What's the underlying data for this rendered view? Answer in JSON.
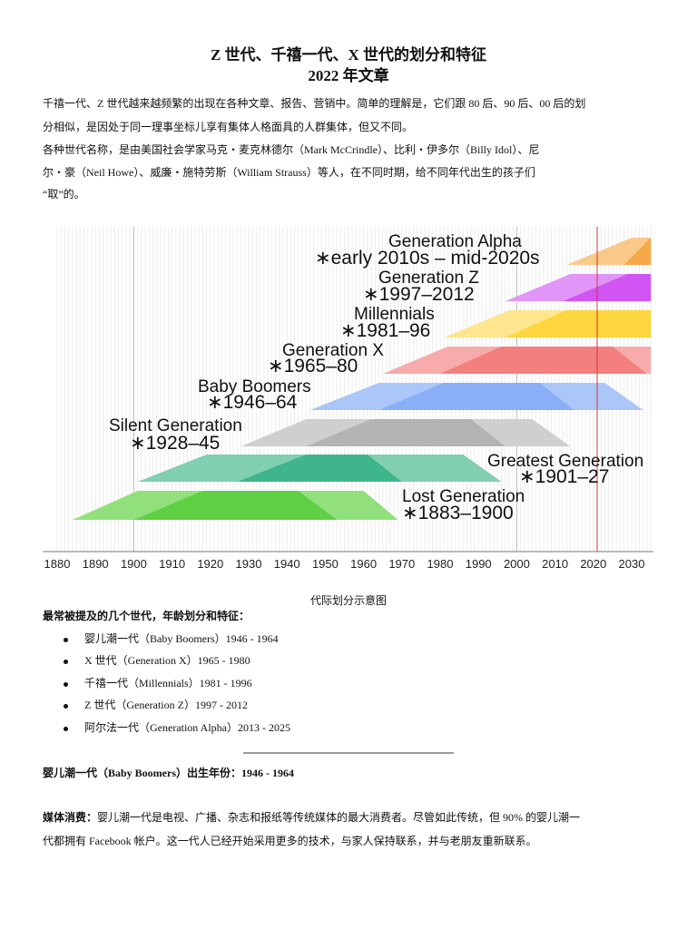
{
  "title": {
    "line1": "Z 世代、千禧一代、X 世代的划分和特征",
    "line2": "2022 年文章"
  },
  "intro": [
    "千禧一代、Z 世代越来越频繁的出现在各种文章、报告、营销中。简单的理解是，它们跟 80 后、90 后、00 后的划",
    "分相似，是因处于同一理事坐标儿享有集体人格面具的人群集体，但又不同。",
    "各种世代名称，是由美国社会学家马克・麦克林德尔（Mark McCrindle）、比利・伊多尔（Billy Idol）、尼",
    "尔・豪（Neil Howe）、威廉・施特劳斯（William Strauss）等人，在不同时期，给不同年代出生的孩子们",
    "“取”的。"
  ],
  "chart_data": {
    "type": "timeline",
    "xlim": [
      1880,
      2035
    ],
    "x_ticks": [
      "1880",
      "1890",
      "1900",
      "1910",
      "1920",
      "1930",
      "1940",
      "1950",
      "1960",
      "1970",
      "1980",
      "1990",
      "2000",
      "2010",
      "2020",
      "2030"
    ],
    "current_year_marker": 2021,
    "grid": true,
    "series": [
      {
        "name": "Generation Alpha",
        "label": "∗early 2010s – mid-2020s",
        "light": "#f9c98a",
        "dark": "#f7a94a",
        "light_shape": [
          2013,
          2030,
          2035,
          2035
        ],
        "dark_shape": [
          2028,
          2035,
          2035,
          2035
        ]
      },
      {
        "name": "Generation Z",
        "label": "∗1997–2012",
        "light": "#e195f6",
        "dark": "#d155f2",
        "light_shape": [
          1997,
          2014,
          2035,
          2035
        ],
        "dark_shape": [
          2012,
          2029,
          2035,
          2035
        ]
      },
      {
        "name": "Millennials",
        "label": "∗1981–96",
        "light": "#fde68e",
        "dark": "#fdd63e",
        "light_shape": [
          1981,
          1998,
          2035,
          2035
        ],
        "dark_shape": [
          1997,
          2013,
          2035,
          2035
        ]
      },
      {
        "name": "Generation X",
        "label": "∗1965–80",
        "light": "#f8abab",
        "dark": "#f47f7f",
        "light_shape": [
          1965,
          1982,
          2035,
          2035
        ],
        "dark_shape": [
          1980,
          1996,
          2025,
          2034
        ]
      },
      {
        "name": "Baby Boomers",
        "label": "∗1946–64",
        "light": "#abc6f9",
        "dark": "#8aaff6",
        "light_shape": [
          1946,
          1964,
          2023,
          2033
        ],
        "dark_shape": [
          1964,
          1981,
          2006,
          2015
        ]
      },
      {
        "name": "Silent Generation",
        "label": "∗1928–45",
        "light": "#cfcfcf",
        "dark": "#b3b3b3",
        "light_shape": [
          1928,
          1945,
          2004,
          2014
        ],
        "dark_shape": [
          1945,
          1962,
          1988,
          1997
        ]
      },
      {
        "name": "Greatest Generation",
        "label": "∗1901–27",
        "light": "#80cfb0",
        "dark": "#3fb58b",
        "light_shape": [
          1901,
          1919,
          1986,
          1996
        ],
        "dark_shape": [
          1927,
          1945,
          1961,
          1970
        ]
      },
      {
        "name": "Lost Generation",
        "label": "∗1883–1900",
        "light": "#92e07c",
        "dark": "#5fd043",
        "light_shape": [
          1884,
          1901,
          1960,
          1969
        ],
        "dark_shape": [
          1900,
          1918,
          1943,
          1953
        ]
      }
    ]
  },
  "caption": "代际划分示意图",
  "list_heading": "最常被提及的几个世代，年龄划分和特征：",
  "list": [
    "婴儿潮一代（Baby Boomers）1946 - 1964",
    "X 世代（Generation X）1965 - 1980",
    "千禧一代（Millennials）1981 - 1996",
    "Z 世代（Generation Z）1997 - 2012",
    "阿尔法一代（Generation Alpha）2013 - 2025"
  ],
  "section_heading": "婴儿潮一代（Baby Boomers）出生年份：1946 - 1964",
  "media": {
    "label": "媒体消费：",
    "line1": "婴儿潮一代是电视、广播、杂志和报纸等传统媒体的最大消费者。尽管如此传统，但 90% 的婴儿潮一",
    "line2": "代都拥有 Facebook 帐户。这一代人已经开始采用更多的技术，与家人保持联系，并与老朋友重新联系。"
  }
}
